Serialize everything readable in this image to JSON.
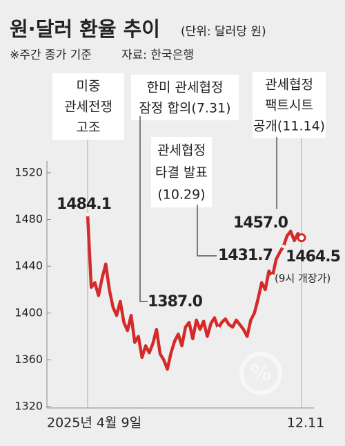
{
  "chart_data": {
    "type": "line",
    "title": "원·달러 환율 추이",
    "unit": "(단위: 달러당 원)",
    "subtitle": "※주간 종가 기준",
    "source": "자료: 한국은행",
    "categories": [
      "2025년 4월 9일",
      null,
      null,
      null,
      null,
      null,
      null,
      null,
      null,
      null,
      null,
      null,
      null,
      null,
      null,
      null,
      null,
      null,
      null,
      null,
      null,
      null,
      null,
      null,
      null,
      null,
      null,
      null,
      null,
      null,
      null,
      null,
      null,
      null,
      null,
      null,
      null,
      null,
      null,
      null,
      null,
      null,
      null,
      null,
      null,
      null,
      null,
      null,
      null,
      null,
      null,
      null,
      null,
      null,
      null,
      null,
      null,
      null,
      null,
      "12.11"
    ],
    "series": [
      {
        "color": "#d42a2a",
        "values": [
          1484.1,
          1422,
          1426,
          1415,
          1430,
          1442,
          1420,
          1405,
          1398,
          1410,
          1392,
          1385,
          1398,
          1375,
          1380,
          1362,
          1372,
          1366,
          1374,
          1386,
          1365,
          1360,
          1352,
          1366,
          1376,
          1382,
          1372,
          1388,
          1392,
          1378,
          1394,
          1386,
          1393,
          1380,
          1391,
          1396,
          1387.0,
          1392,
          1395,
          1390,
          1388,
          1394,
          1390,
          1386,
          1380,
          1394,
          1400,
          1412,
          1426,
          1420,
          1436,
          1431.7,
          1446,
          1452,
          1457.0,
          1466,
          1470,
          1462,
          1468,
          1464.5
        ],
        "value_labels": [
          "1484.1",
          null,
          null,
          null,
          null,
          null,
          null,
          null,
          null,
          null,
          null,
          null,
          null,
          null,
          null,
          null,
          null,
          null,
          null,
          null,
          null,
          null,
          null,
          null,
          null,
          null,
          null,
          null,
          null,
          null,
          null,
          null,
          null,
          null,
          null,
          null,
          "1387.0",
          null,
          null,
          null,
          null,
          null,
          null,
          null,
          null,
          null,
          null,
          null,
          null,
          null,
          null,
          "1431.7",
          null,
          null,
          "1457.0",
          null,
          null,
          null,
          null,
          "1464.5"
        ]
      }
    ],
    "ylim": [
      1320,
      1530
    ],
    "yticks": [
      1320,
      1360,
      1400,
      1440,
      1480,
      1520
    ],
    "events": [
      {
        "lines": [
          "미중",
          "관세전쟁",
          "고조"
        ]
      },
      {
        "lines": [
          "한미 관세협정",
          "잠정 합의(7.31)"
        ]
      },
      {
        "lines": [
          "관세협정",
          "타결 발표",
          "(10.29)"
        ]
      },
      {
        "lines": [
          "관세협정",
          "팩트시트",
          "공개(11.14)"
        ]
      }
    ],
    "note": "(9시 개장가)"
  }
}
